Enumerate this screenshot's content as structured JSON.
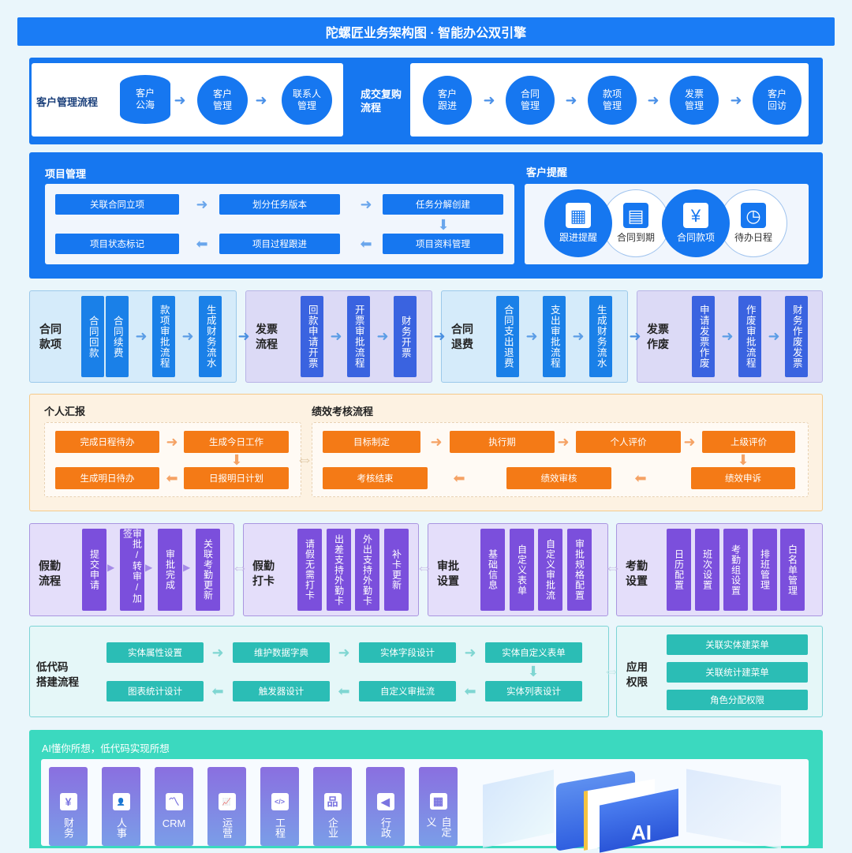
{
  "title": "陀螺匠业务架构图 · 智能办公双引擎",
  "customer_flow": {
    "label": "客户管理流程",
    "steps": [
      "客户\n公海",
      "客户\n管理",
      "联系人\n管理"
    ]
  },
  "deal_flow": {
    "label": "成交复购\n流程",
    "steps": [
      "客户\n跟进",
      "合同\n管理",
      "款项\n管理",
      "发票\n管理",
      "客户\n回访"
    ]
  },
  "project": {
    "label": "项目管理",
    "steps": [
      "关联合同立项",
      "划分任务版本",
      "任务分解创建",
      "项目资料管理",
      "项目过程跟进",
      "项目状态标记"
    ]
  },
  "reminder": {
    "label": "客户提醒",
    "items": [
      {
        "label": "跟进提醒",
        "icon": "calendar-icon"
      },
      {
        "label": "合同到期",
        "icon": "document-icon"
      },
      {
        "label": "合同款项",
        "icon": "yen-icon"
      },
      {
        "label": "待办日程",
        "icon": "schedule-clock-icon"
      }
    ]
  },
  "finance_groups": [
    {
      "label": "合同\n款项",
      "steps": [
        "合同回款",
        "合同续费",
        "款项审批流程",
        "生成财务流水"
      ]
    },
    {
      "label": "发票\n流程",
      "steps": [
        "回款申请开票",
        "开票审批流程",
        "财务开票"
      ]
    },
    {
      "label": "合同\n退费",
      "steps": [
        "合同支出退费",
        "支出审批流程",
        "生成财务流水"
      ]
    },
    {
      "label": "发票\n作废",
      "steps": [
        "申请发票作废",
        "作废审批流程",
        "财务作废发票"
      ]
    }
  ],
  "report": {
    "label": "个人汇报",
    "steps": [
      "完成日程待办",
      "生成今日工作",
      "日报明日计划",
      "生成明日待办"
    ]
  },
  "performance": {
    "label": "绩效考核流程",
    "steps": [
      "目标制定",
      "执行期",
      "个人评价",
      "上级评价",
      "绩效申诉",
      "绩效审核",
      "考核结束"
    ]
  },
  "attendance_groups": [
    {
      "label": "假勤\n流程",
      "steps": [
        "提交申请",
        "审批/转审/加签",
        "审批完成",
        "关联考勤更新"
      ]
    },
    {
      "label": "假勤\n打卡",
      "steps": [
        "请假无需打卡",
        "出差支持外勤卡",
        "外出支持外勤卡",
        "补卡更新"
      ]
    },
    {
      "label": "审批\n设置",
      "steps": [
        "基础信息",
        "自定义表单",
        "自定义审批流",
        "审批规格配置"
      ]
    },
    {
      "label": "考勤\n设置",
      "steps": [
        "日历配置",
        "班次设置",
        "考勤组设置",
        "排班管理",
        "白名单管理"
      ]
    }
  ],
  "lowcode": {
    "label": "低代码\n搭建流程",
    "steps": [
      "实体属性设置",
      "维护数据字典",
      "实体字段设计",
      "实体自定义表单",
      "实体列表设计",
      "自定义审批流",
      "触发器设计",
      "图表统计设计"
    ]
  },
  "permissions": {
    "label": "应用\n权限",
    "items": [
      "关联实体建菜单",
      "关联统计建菜单",
      "角色分配权限"
    ]
  },
  "ai": {
    "label": "AI懂你所想，低代码实现所想",
    "apps": [
      {
        "label": "财务",
        "icon": "yen-doc-icon"
      },
      {
        "label": "人事",
        "icon": "people-icon"
      },
      {
        "label": "CRM",
        "icon": "chart-line-icon"
      },
      {
        "label": "运营",
        "icon": "presentation-icon"
      },
      {
        "label": "工程",
        "icon": "code-monitor-icon"
      },
      {
        "label": "企业",
        "icon": "org-chart-icon"
      },
      {
        "label": "行政",
        "icon": "megaphone-icon"
      },
      {
        "label": "自定义",
        "icon": "grid-icon"
      }
    ],
    "illustration_text": "AI"
  },
  "colors": {
    "blue": "#1677f0",
    "indigo": "#3a63e0",
    "orange": "#f47a16",
    "purple": "#7b4fdc",
    "teal": "#2bbdb5",
    "mint": "#3bd9bf"
  }
}
